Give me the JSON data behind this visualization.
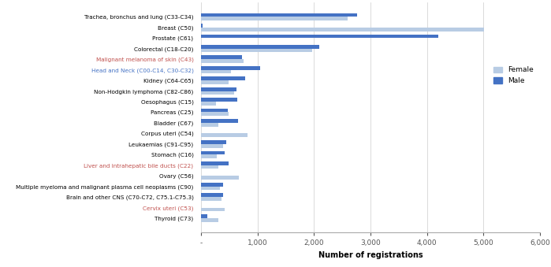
{
  "categories": [
    "Trachea, bronchus and lung (C33-C34)",
    "Breast (C50)",
    "Prostate (C61)",
    "Colorectal (C18-C20)",
    "Malignant melanoma of skin (C43)",
    "Head and Neck (C00-C14, C30-C32)",
    "Kidney (C64-C65)",
    "Non-Hodgkin lymphoma (C82-C86)",
    "Oesophagus (C15)",
    "Pancreas (C25)",
    "Bladder (C67)",
    "Corpus uteri (C54)",
    "Leukaemias (C91-C95)",
    "Stomach (C16)",
    "Liver and intrahepatic bile ducts (C22)",
    "Ovary (C56)",
    "Multiple myeloma and malignant plasma cell neoplasms (C90)",
    "Brain and other CNS (C70-C72, C75.1-C75.3)",
    "Cervix uteri (C53)",
    "Thyroid (C73)"
  ],
  "female": [
    2600,
    5010,
    0,
    1960,
    750,
    530,
    480,
    580,
    270,
    490,
    310,
    820,
    390,
    280,
    300,
    670,
    340,
    360,
    420,
    310
  ],
  "male": [
    2760,
    30,
    4200,
    2090,
    720,
    1050,
    780,
    630,
    640,
    470,
    660,
    0,
    440,
    410,
    490,
    0,
    390,
    390,
    0,
    110
  ],
  "female_color": "#b8cce4",
  "male_color": "#4472c4",
  "label_colors": [
    "#000000",
    "#000000",
    "#000000",
    "#000000",
    "#c0504d",
    "#4472c4",
    "#000000",
    "#000000",
    "#000000",
    "#000000",
    "#000000",
    "#000000",
    "#000000",
    "#000000",
    "#c0504d",
    "#000000",
    "#000000",
    "#000000",
    "#c0504d",
    "#000000"
  ],
  "xlabel": "Number of registrations",
  "xlim": [
    0,
    6000
  ],
  "xticks": [
    0,
    1000,
    2000,
    3000,
    4000,
    5000,
    6000
  ],
  "xtick_labels": [
    "-",
    "1,000",
    "2,000",
    "3,000",
    "4,000",
    "5,000",
    "6,000"
  ],
  "bar_height": 0.35,
  "figsize": [
    6.99,
    3.39
  ],
  "dpi": 100
}
